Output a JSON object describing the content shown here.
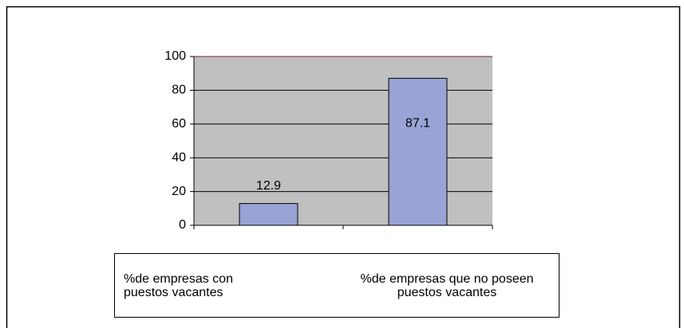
{
  "chart_data": {
    "type": "bar",
    "categories": [
      "%de empresas con puestos vacantes",
      "%de empresas que no poseen puestos vacantes"
    ],
    "values": [
      12.9,
      87.1
    ],
    "color": "#99a3d6",
    "ylim": [
      0,
      100
    ],
    "yticks": [
      0,
      20,
      40,
      60,
      80,
      100
    ],
    "grid": true
  }
}
